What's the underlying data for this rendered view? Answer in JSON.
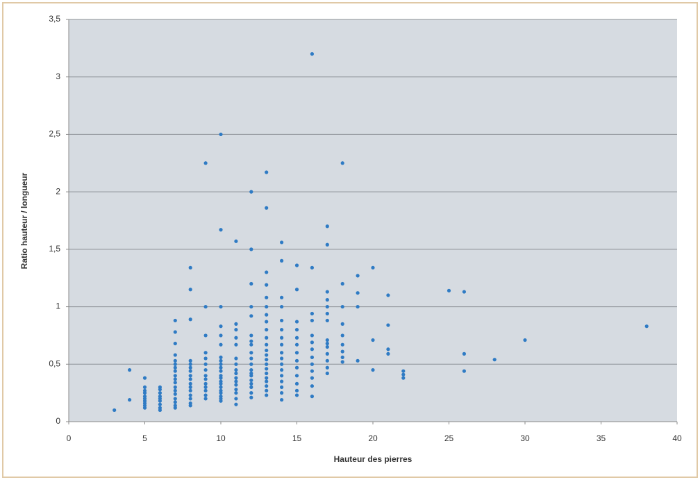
{
  "chart_data": {
    "type": "scatter",
    "x_label": "Hauteur des pierres",
    "y_label": "Ratio hauteur / longueur",
    "color": "#2f7bc4",
    "grid": true,
    "xlim": [
      0,
      40
    ],
    "xticks": [
      0,
      5,
      10,
      15,
      20,
      25,
      30,
      35,
      40
    ],
    "ylim": [
      0,
      3.5
    ],
    "yticks": [
      0,
      {
        "value": 0.5,
        "label": "0,5"
      },
      1,
      {
        "value": 1.5,
        "label": "1,5"
      },
      2,
      {
        "value": 2.5,
        "label": "2,5"
      },
      3,
      {
        "value": 3.5,
        "label": "3,5"
      }
    ],
    "x": [
      3,
      4,
      4,
      5,
      5,
      5,
      5,
      5,
      5,
      5,
      5,
      5,
      5,
      6,
      6,
      6,
      6,
      6,
      6,
      6,
      6,
      6,
      7,
      7,
      7,
      7,
      7,
      7,
      7,
      7,
      7,
      7,
      7,
      7,
      7,
      7,
      7,
      7,
      7,
      7,
      8,
      8,
      8,
      8,
      8,
      8,
      8,
      8,
      8,
      8,
      8,
      8,
      8,
      8,
      8,
      8,
      9,
      9,
      9,
      9,
      9,
      9,
      9,
      9,
      9,
      9,
      9,
      9,
      9,
      9,
      10,
      10,
      10,
      10,
      10,
      10,
      10,
      10,
      10,
      10,
      10,
      10,
      10,
      10,
      10,
      10,
      10,
      10,
      10,
      10,
      10,
      11,
      11,
      11,
      11,
      11,
      11,
      11,
      11,
      11,
      11,
      11,
      11,
      11,
      11,
      11,
      11,
      12,
      12,
      12,
      12,
      12,
      12,
      12,
      12,
      12,
      12,
      12,
      12,
      12,
      12,
      12,
      12,
      12,
      12,
      12,
      13,
      13,
      13,
      13,
      13,
      13,
      13,
      13,
      13,
      13,
      13,
      13,
      13,
      13,
      13,
      13,
      13,
      13,
      13,
      13,
      13,
      13,
      14,
      14,
      14,
      14,
      14,
      14,
      14,
      14,
      14,
      14,
      14,
      14,
      14,
      14,
      14,
      14,
      14,
      15,
      15,
      15,
      15,
      15,
      15,
      15,
      15,
      15,
      15,
      15,
      15,
      15,
      16,
      16,
      16,
      16,
      16,
      16,
      16,
      16,
      16,
      16,
      16,
      16,
      16,
      17,
      17,
      17,
      17,
      17,
      17,
      17,
      17,
      17,
      17,
      17,
      17,
      17,
      17,
      18,
      18,
      18,
      18,
      18,
      18,
      18,
      18,
      18,
      19,
      19,
      19,
      19,
      20,
      20,
      20,
      21,
      21,
      21,
      21,
      22,
      22,
      22,
      25,
      26,
      26,
      26,
      28,
      30,
      38
    ],
    "values": [
      0.1,
      0.19,
      0.45,
      0.38,
      0.3,
      0.27,
      0.25,
      0.22,
      0.2,
      0.18,
      0.16,
      0.14,
      0.12,
      0.3,
      0.28,
      0.25,
      0.22,
      0.2,
      0.18,
      0.15,
      0.12,
      0.1,
      0.88,
      0.78,
      0.68,
      0.58,
      0.53,
      0.5,
      0.47,
      0.44,
      0.4,
      0.37,
      0.34,
      0.3,
      0.27,
      0.24,
      0.2,
      0.17,
      0.14,
      0.12,
      1.34,
      1.15,
      0.89,
      0.53,
      0.5,
      0.47,
      0.44,
      0.4,
      0.37,
      0.33,
      0.3,
      0.27,
      0.23,
      0.2,
      0.16,
      0.14,
      2.25,
      1.0,
      0.75,
      0.6,
      0.55,
      0.5,
      0.45,
      0.4,
      0.37,
      0.33,
      0.3,
      0.27,
      0.23,
      0.2,
      2.5,
      1.67,
      1.0,
      0.83,
      0.75,
      0.67,
      0.56,
      0.53,
      0.5,
      0.47,
      0.44,
      0.4,
      0.38,
      0.35,
      0.33,
      0.3,
      0.27,
      0.25,
      0.22,
      0.2,
      0.18,
      1.57,
      0.85,
      0.8,
      0.73,
      0.67,
      0.55,
      0.5,
      0.45,
      0.42,
      0.38,
      0.35,
      0.32,
      0.28,
      0.25,
      0.2,
      0.15,
      2.0,
      1.5,
      1.2,
      1.0,
      0.92,
      0.75,
      0.7,
      0.67,
      0.6,
      0.55,
      0.5,
      0.45,
      0.42,
      0.4,
      0.36,
      0.33,
      0.3,
      0.25,
      0.21,
      2.17,
      1.86,
      1.3,
      1.19,
      1.08,
      1.0,
      0.93,
      0.87,
      0.8,
      0.73,
      0.67,
      0.62,
      0.58,
      0.54,
      0.5,
      0.46,
      0.42,
      0.38,
      0.35,
      0.31,
      0.27,
      0.23,
      1.56,
      1.4,
      1.08,
      1.0,
      0.88,
      0.8,
      0.73,
      0.67,
      0.6,
      0.55,
      0.5,
      0.45,
      0.4,
      0.35,
      0.3,
      0.25,
      0.19,
      1.36,
      1.15,
      0.87,
      0.8,
      0.73,
      0.67,
      0.6,
      0.53,
      0.47,
      0.4,
      0.33,
      0.27,
      0.23,
      3.2,
      1.34,
      0.94,
      0.88,
      0.75,
      0.69,
      0.63,
      0.56,
      0.5,
      0.44,
      0.38,
      0.31,
      0.22,
      1.7,
      1.54,
      1.13,
      1.06,
      1.0,
      0.94,
      0.88,
      0.71,
      0.68,
      0.65,
      0.59,
      0.53,
      0.47,
      0.42,
      2.25,
      1.2,
      1.0,
      0.85,
      0.75,
      0.67,
      0.61,
      0.56,
      0.52,
      1.27,
      1.12,
      1.0,
      0.53,
      1.34,
      0.71,
      0.45,
      1.1,
      0.84,
      0.63,
      0.59,
      0.44,
      0.41,
      0.38,
      1.14,
      1.13,
      0.59,
      0.44,
      0.54,
      0.71,
      0.83
    ]
  }
}
